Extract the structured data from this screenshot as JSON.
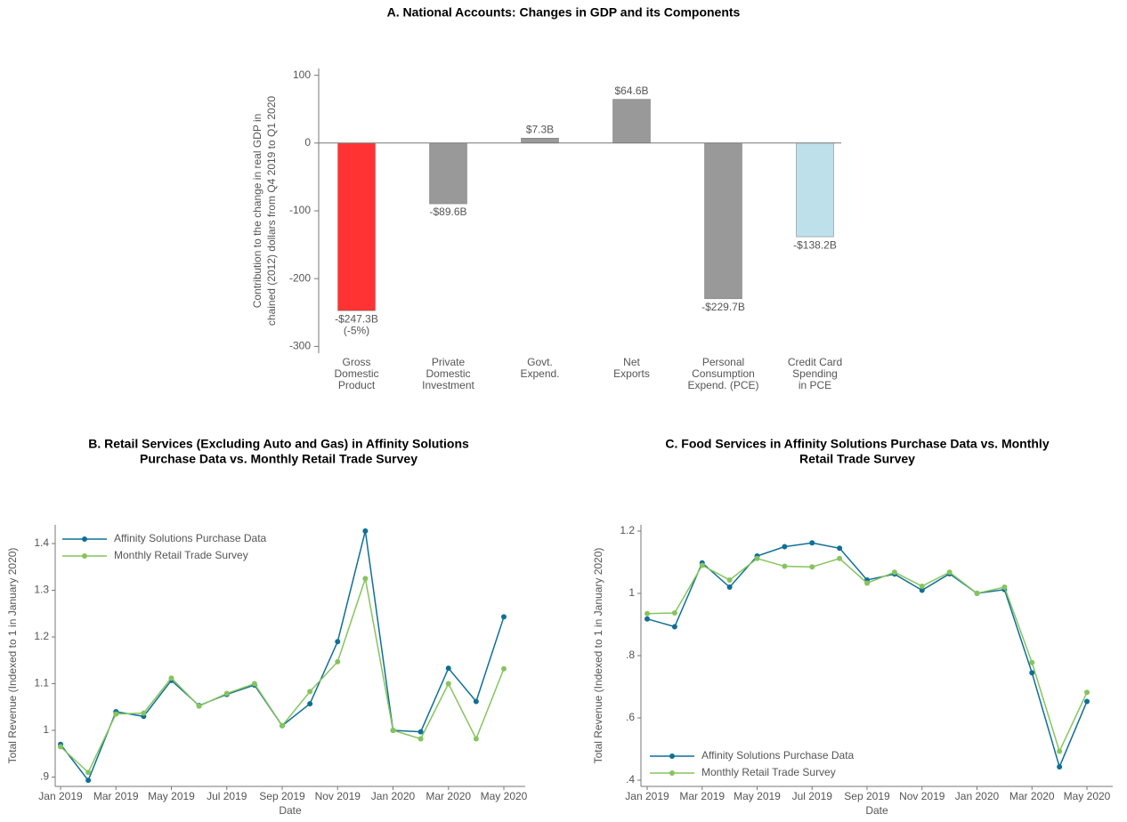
{
  "chart_data": [
    {
      "type": "bar",
      "title": [
        "A. National Accounts: Changes in GDP and its Components"
      ],
      "ylabel": [
        "Contribution to the change in real GDP in",
        "chained (2012) dollars from Q4 2019 to Q1 2020"
      ],
      "categories": [
        [
          "Gross",
          "Domestic",
          "Product"
        ],
        [
          "Private",
          "Domestic",
          "Investment"
        ],
        [
          "Govt.",
          "Expend."
        ],
        [
          "Net",
          "Exports"
        ],
        [
          "Personal",
          "Consumption",
          "Expend. (PCE)"
        ],
        [
          "Credit Card",
          "Spending",
          "in PCE"
        ]
      ],
      "values": [
        -247.3,
        -89.6,
        7.3,
        64.6,
        -229.7,
        -138.2
      ],
      "value_labels": [
        "-$247.3B",
        "-$89.6B",
        "$7.3B",
        "$64.6B",
        "-$229.7B",
        "-$138.2B"
      ],
      "annotations": [
        {
          "category": 0,
          "text": "(-5%)"
        }
      ],
      "colors": [
        "#ff3333",
        "#999999",
        "#999999",
        "#999999",
        "#999999",
        "#bde0ea"
      ],
      "ylim": [
        -310,
        110
      ],
      "yticks": [
        -300,
        -200,
        -100,
        0,
        100
      ]
    },
    {
      "type": "line",
      "title": [
        "B. Retail Services (Excluding Auto and Gas) in Affinity Solutions",
        "Purchase Data vs. Monthly Retail Trade Survey"
      ],
      "xlabel": "Date",
      "ylabel": [
        "Total Revenue (Indexed to 1 in January 2020)"
      ],
      "legend": "upper-left",
      "x": [
        "2019-01",
        "2019-02",
        "2019-03",
        "2019-04",
        "2019-05",
        "2019-06",
        "2019-07",
        "2019-08",
        "2019-09",
        "2019-10",
        "2019-11",
        "2019-12",
        "2020-01",
        "2020-02",
        "2020-03",
        "2020-04",
        "2020-05"
      ],
      "xticks": [
        {
          "value": "2019-01",
          "label": "Jan 2019"
        },
        {
          "value": "2019-03",
          "label": "Mar 2019"
        },
        {
          "value": "2019-05",
          "label": "May 2019"
        },
        {
          "value": "2019-07",
          "label": "Jul 2019"
        },
        {
          "value": "2019-09",
          "label": "Sep 2019"
        },
        {
          "value": "2019-11",
          "label": "Nov 2019"
        },
        {
          "value": "2020-01",
          "label": "Jan 2020"
        },
        {
          "value": "2020-03",
          "label": "Mar 2020"
        },
        {
          "value": "2020-05",
          "label": "May 2020"
        }
      ],
      "series": [
        {
          "name": "Affinity Solutions Purchase Data",
          "color": "#0f6f97",
          "values": [
            0.97,
            0.893,
            1.04,
            1.03,
            1.107,
            1.053,
            1.077,
            1.097,
            1.01,
            1.057,
            1.19,
            1.427,
            1.0,
            0.997,
            1.133,
            1.062,
            1.243
          ]
        },
        {
          "name": "Monthly Retail Trade Survey",
          "color": "#86c45e",
          "values": [
            0.965,
            0.91,
            1.035,
            1.037,
            1.112,
            1.052,
            1.079,
            1.1,
            1.01,
            1.083,
            1.147,
            1.325,
            1.0,
            0.982,
            1.1,
            0.982,
            1.132
          ]
        }
      ],
      "ylim": [
        0.88,
        1.44
      ],
      "yticks": [
        {
          "value": 0.9,
          "label": ".9"
        },
        1,
        1.1,
        1.2,
        1.3,
        1.4
      ]
    },
    {
      "type": "line",
      "title": [
        "C. Food Services in Affinity Solutions Purchase Data vs. Monthly",
        "Retail Trade Survey"
      ],
      "xlabel": "Date",
      "ylabel": [
        "Total Revenue (Indexed to 1 in January 2020)"
      ],
      "legend": "lower-left",
      "x": [
        "2019-01",
        "2019-02",
        "2019-03",
        "2019-04",
        "2019-05",
        "2019-06",
        "2019-07",
        "2019-08",
        "2019-09",
        "2019-10",
        "2019-11",
        "2019-12",
        "2020-01",
        "2020-02",
        "2020-03",
        "2020-04",
        "2020-05"
      ],
      "xticks": [
        {
          "value": "2019-01",
          "label": "Jan 2019"
        },
        {
          "value": "2019-03",
          "label": "Mar 2019"
        },
        {
          "value": "2019-05",
          "label": "May 2019"
        },
        {
          "value": "2019-07",
          "label": "Jul 2019"
        },
        {
          "value": "2019-09",
          "label": "Sep 2019"
        },
        {
          "value": "2019-11",
          "label": "Nov 2019"
        },
        {
          "value": "2020-01",
          "label": "Jan 2020"
        },
        {
          "value": "2020-03",
          "label": "Mar 2020"
        },
        {
          "value": "2020-05",
          "label": "May 2020"
        }
      ],
      "series": [
        {
          "name": "Affinity Solutions Purchase Data",
          "color": "#0f6f97",
          "values": [
            0.918,
            0.893,
            1.098,
            1.02,
            1.12,
            1.15,
            1.162,
            1.145,
            1.043,
            1.062,
            1.01,
            1.063,
            1.0,
            1.012,
            0.745,
            0.443,
            0.653
          ]
        },
        {
          "name": "Monthly Retail Trade Survey",
          "color": "#86c45e",
          "values": [
            0.935,
            0.937,
            1.09,
            1.043,
            1.112,
            1.087,
            1.085,
            1.112,
            1.033,
            1.068,
            1.023,
            1.068,
            1.0,
            1.02,
            0.778,
            0.493,
            0.682
          ]
        }
      ],
      "ylim": [
        0.38,
        1.22
      ],
      "yticks": [
        {
          "value": 0.4,
          "label": ".4"
        },
        {
          "value": 0.6,
          "label": ".6"
        },
        {
          "value": 0.8,
          "label": ".8"
        },
        1,
        1.2
      ]
    }
  ]
}
